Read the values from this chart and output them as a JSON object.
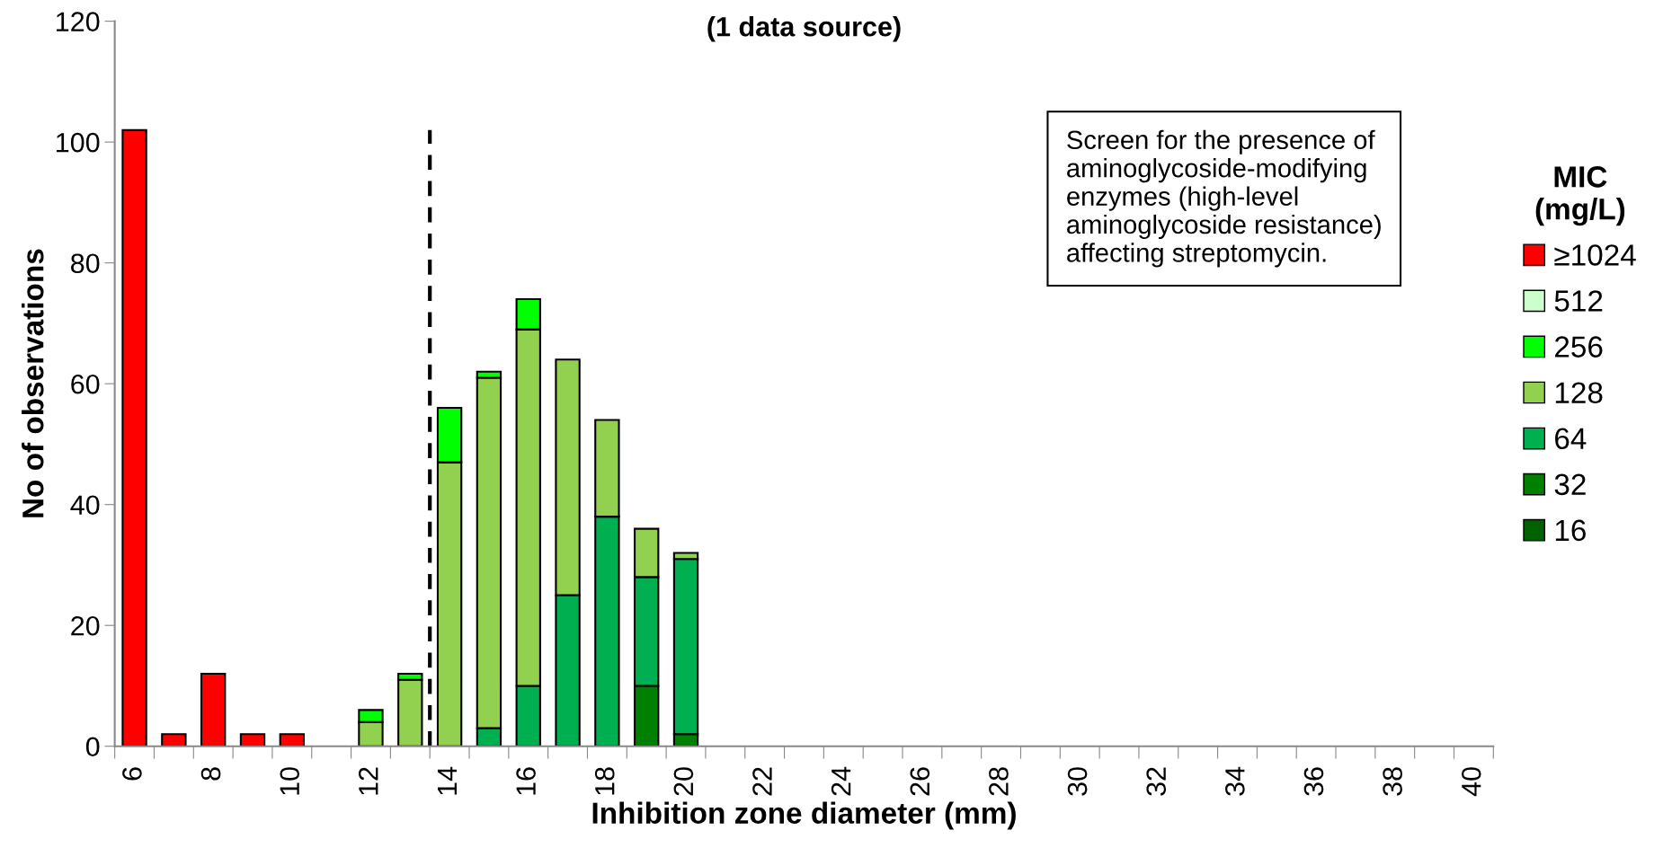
{
  "chart_data": {
    "type": "bar",
    "stacked": true,
    "title": "(1 data source)",
    "xlabel": "Inhibition zone diameter (mm)",
    "ylabel": "No of observations",
    "legend_title": "MIC\n(mg/L)",
    "legend": "right",
    "x": [
      6,
      7,
      8,
      9,
      10,
      11,
      12,
      13,
      14,
      15,
      16,
      17,
      18,
      19,
      20,
      21,
      22,
      23,
      24,
      25,
      26,
      27,
      28,
      29,
      30,
      31,
      32,
      33,
      34,
      35,
      36,
      37,
      38,
      39,
      40
    ],
    "xlim": [
      5.5,
      40.5
    ],
    "xticks": [
      6,
      8,
      10,
      12,
      14,
      16,
      18,
      20,
      22,
      24,
      26,
      28,
      30,
      32,
      34,
      36,
      38,
      40,
      {
        "value": 5.5,
        "label": null
      },
      {
        "value": 6.5,
        "label": null
      },
      {
        "value": 7.5,
        "label": null
      },
      {
        "value": 8.5,
        "label": null
      },
      {
        "value": 9.5,
        "label": null
      },
      {
        "value": 10.5,
        "label": null
      },
      {
        "value": 11.5,
        "label": null
      },
      {
        "value": 12.5,
        "label": null
      },
      {
        "value": 13.5,
        "label": null
      },
      {
        "value": 14.5,
        "label": null
      },
      {
        "value": 15.5,
        "label": null
      },
      {
        "value": 16.5,
        "label": null
      },
      {
        "value": 17.5,
        "label": null
      },
      {
        "value": 18.5,
        "label": null
      },
      {
        "value": 19.5,
        "label": null
      },
      {
        "value": 20.5,
        "label": null
      },
      {
        "value": 21.5,
        "label": null
      },
      {
        "value": 22.5,
        "label": null
      },
      {
        "value": 23.5,
        "label": null
      },
      {
        "value": 24.5,
        "label": null
      },
      {
        "value": 25.5,
        "label": null
      },
      {
        "value": 26.5,
        "label": null
      },
      {
        "value": 27.5,
        "label": null
      },
      {
        "value": 28.5,
        "label": null
      },
      {
        "value": 29.5,
        "label": null
      },
      {
        "value": 30.5,
        "label": null
      },
      {
        "value": 31.5,
        "label": null
      },
      {
        "value": 32.5,
        "label": null
      },
      {
        "value": 33.5,
        "label": null
      },
      {
        "value": 34.5,
        "label": null
      },
      {
        "value": 35.5,
        "label": null
      },
      {
        "value": 36.5,
        "label": null
      },
      {
        "value": 37.5,
        "label": null
      },
      {
        "value": 38.5,
        "label": null
      },
      {
        "value": 39.5,
        "label": null
      },
      {
        "value": 40.5,
        "label": null
      }
    ],
    "ylim": [
      0,
      120
    ],
    "yticks": [
      0,
      20,
      40,
      60,
      80,
      100,
      120
    ],
    "grid": false,
    "ref_lines": [
      {
        "axis": "x",
        "value": 13.5,
        "color": "#000000",
        "line_style": "dashed"
      }
    ],
    "annotations": [
      "Screen for the presence of\naminoglycoside-modifying\nenzymes (high-level\naminoglycoside resistance)\naffecting streptomycin."
    ],
    "series": [
      {
        "name": "16",
        "color": "#006100",
        "values": [
          0,
          0,
          0,
          0,
          0,
          0,
          0,
          0,
          0,
          0,
          0,
          0,
          0,
          0,
          0,
          0,
          0,
          0,
          0,
          0,
          0,
          0,
          0,
          0,
          0,
          0,
          0,
          0,
          0,
          0,
          0,
          0,
          0,
          0,
          0
        ]
      },
      {
        "name": "32",
        "color": "#008000",
        "values": [
          0,
          0,
          0,
          0,
          0,
          0,
          0,
          0,
          0,
          0,
          0,
          0,
          0,
          10,
          2,
          0,
          0,
          0,
          0,
          0,
          0,
          0,
          0,
          0,
          0,
          0,
          0,
          0,
          0,
          0,
          0,
          0,
          0,
          0,
          0
        ]
      },
      {
        "name": "64",
        "color": "#00b050",
        "values": [
          0,
          0,
          0,
          0,
          0,
          0,
          0,
          0,
          0,
          3,
          10,
          25,
          38,
          18,
          29,
          0,
          0,
          0,
          0,
          0,
          0,
          0,
          0,
          0,
          0,
          0,
          0,
          0,
          0,
          0,
          0,
          0,
          0,
          0,
          0
        ]
      },
      {
        "name": "128",
        "color": "#92d050",
        "values": [
          0,
          0,
          0,
          0,
          0,
          0,
          4,
          11,
          47,
          58,
          59,
          39,
          16,
          8,
          1,
          0,
          0,
          0,
          0,
          0,
          0,
          0,
          0,
          0,
          0,
          0,
          0,
          0,
          0,
          0,
          0,
          0,
          0,
          0,
          0
        ]
      },
      {
        "name": "256",
        "color": "#00ff00",
        "values": [
          0,
          0,
          0,
          0,
          0,
          0,
          2,
          1,
          9,
          1,
          5,
          0,
          0,
          0,
          0,
          0,
          0,
          0,
          0,
          0,
          0,
          0,
          0,
          0,
          0,
          0,
          0,
          0,
          0,
          0,
          0,
          0,
          0,
          0,
          0
        ]
      },
      {
        "name": "512",
        "color": "#ccffcc",
        "values": [
          0,
          0,
          0,
          0,
          0,
          0,
          0,
          0,
          0,
          0,
          0,
          0,
          0,
          0,
          0,
          0,
          0,
          0,
          0,
          0,
          0,
          0,
          0,
          0,
          0,
          0,
          0,
          0,
          0,
          0,
          0,
          0,
          0,
          0,
          0
        ]
      },
      {
        "name": "≥1024",
        "color": "#ff0000",
        "values": [
          102,
          2,
          12,
          2,
          2,
          0,
          0,
          0,
          0,
          0,
          0,
          0,
          0,
          0,
          0,
          0,
          0,
          0,
          0,
          0,
          0,
          0,
          0,
          0,
          0,
          0,
          0,
          0,
          0,
          0,
          0,
          0,
          0,
          0,
          0
        ]
      }
    ]
  }
}
